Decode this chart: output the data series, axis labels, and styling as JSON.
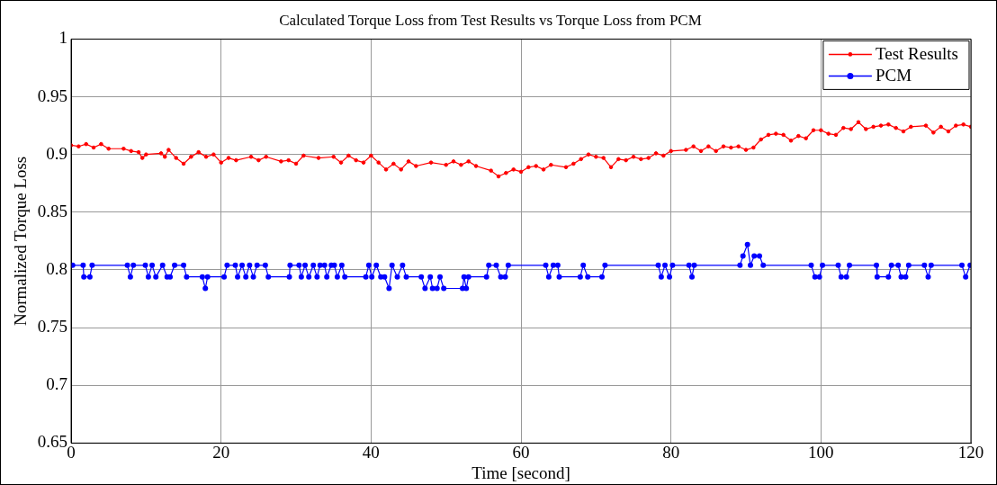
{
  "chart_data": {
    "type": "line",
    "title": "Calculated Torque Loss from Test Results vs Torque Loss from PCM",
    "xlabel": "Time [second]",
    "ylabel": "Normalized Torque Loss",
    "xlim": [
      0,
      120
    ],
    "xticks": [
      0,
      20,
      40,
      60,
      80,
      100,
      120
    ],
    "ylim": [
      0.65,
      1
    ],
    "yticks": [
      0.65,
      0.7,
      0.75,
      0.8,
      0.85,
      0.9,
      0.95,
      1
    ],
    "grid": true,
    "legend": "top right",
    "marker": "circle",
    "line_style": "solid",
    "series": [
      {
        "name": "Test Results",
        "color": "#ff0000",
        "x": [
          0,
          1,
          2,
          3,
          4,
          5,
          7,
          8,
          9,
          9.5,
          10,
          12,
          12.5,
          13,
          14,
          15,
          16,
          17,
          18,
          19,
          20,
          21,
          22,
          24,
          25,
          26,
          28,
          29,
          30,
          31,
          33,
          35,
          36,
          37,
          38,
          39,
          40,
          41,
          42,
          43,
          44,
          45,
          46,
          48,
          50,
          51,
          52,
          53,
          54,
          56,
          57,
          58,
          59,
          60,
          61,
          62,
          63,
          64,
          66,
          67,
          68,
          69,
          70,
          71,
          72,
          73,
          74,
          75,
          76,
          77,
          78,
          79,
          80,
          82,
          83,
          84,
          85,
          86,
          87,
          88,
          89,
          90,
          91,
          92,
          93,
          94,
          95,
          96,
          97,
          98,
          99,
          100,
          101,
          102,
          103,
          104,
          105,
          106,
          107,
          108,
          109,
          110,
          111,
          112,
          114,
          115,
          116,
          117,
          118,
          119,
          120
        ],
        "values": [
          0.908,
          0.907,
          0.909,
          0.906,
          0.909,
          0.905,
          0.905,
          0.903,
          0.902,
          0.897,
          0.9,
          0.901,
          0.898,
          0.904,
          0.897,
          0.892,
          0.898,
          0.902,
          0.898,
          0.9,
          0.893,
          0.897,
          0.895,
          0.898,
          0.895,
          0.898,
          0.894,
          0.895,
          0.892,
          0.899,
          0.897,
          0.898,
          0.893,
          0.899,
          0.895,
          0.893,
          0.899,
          0.893,
          0.887,
          0.892,
          0.887,
          0.894,
          0.89,
          0.893,
          0.891,
          0.894,
          0.891,
          0.894,
          0.89,
          0.886,
          0.881,
          0.884,
          0.887,
          0.885,
          0.889,
          0.89,
          0.887,
          0.891,
          0.889,
          0.892,
          0.896,
          0.9,
          0.898,
          0.897,
          0.889,
          0.896,
          0.895,
          0.898,
          0.896,
          0.897,
          0.901,
          0.899,
          0.903,
          0.904,
          0.907,
          0.903,
          0.907,
          0.903,
          0.907,
          0.906,
          0.907,
          0.904,
          0.906,
          0.913,
          0.917,
          0.918,
          0.917,
          0.912,
          0.916,
          0.914,
          0.921,
          0.921,
          0.918,
          0.917,
          0.923,
          0.922,
          0.928,
          0.922,
          0.924,
          0.925,
          0.926,
          0.923,
          0.92,
          0.924,
          0.925,
          0.919,
          0.924,
          0.92,
          0.925,
          0.926,
          0.924
        ]
      },
      {
        "name": "PCM",
        "color": "#0000ff",
        "x": [
          0.2,
          1.6,
          1.7,
          2.5,
          2.8,
          7.5,
          7.9,
          8.3,
          9.9,
          10.3,
          10.8,
          11.3,
          12.2,
          12.8,
          13.2,
          13.8,
          15,
          15.4,
          17.5,
          17.9,
          18.2,
          20.4,
          20.8,
          21.9,
          22.2,
          22.8,
          23.3,
          23.8,
          24.3,
          24.8,
          25.9,
          26.3,
          29.1,
          29.2,
          30.4,
          30.7,
          31.2,
          31.7,
          32.3,
          32.8,
          33.2,
          33.8,
          34.1,
          34.7,
          35.1,
          35.5,
          36.1,
          36.5,
          39.3,
          39.7,
          40.1,
          40.7,
          41.3,
          41.8,
          42.4,
          42.8,
          43.5,
          44.2,
          44.7,
          46.7,
          47.2,
          47.9,
          48.2,
          48.8,
          49.2,
          49.7,
          52.2,
          52.4,
          52.7,
          53,
          55.4,
          55.7,
          56.7,
          57.3,
          57.9,
          58.3,
          63.3,
          63.7,
          64.3,
          64.9,
          65.1,
          67.9,
          68.3,
          68.9,
          70.8,
          71.2,
          78.3,
          78.7,
          79.2,
          79.8,
          80.2,
          82.4,
          82.8,
          83.1,
          89.2,
          89.6,
          90.2,
          90.6,
          91.1,
          91.8,
          92.3,
          98.7,
          99.2,
          99.8,
          100.2,
          102.3,
          102.7,
          103.4,
          103.8,
          107.4,
          107.5,
          109,
          109.4,
          110.3,
          110.7,
          111.3,
          111.7,
          113.8,
          114.3,
          114.7,
          118.8,
          119.3,
          119.9
        ],
        "values": [
          0.804,
          0.804,
          0.794,
          0.794,
          0.804,
          0.804,
          0.794,
          0.804,
          0.804,
          0.794,
          0.804,
          0.794,
          0.804,
          0.794,
          0.794,
          0.804,
          0.804,
          0.794,
          0.794,
          0.784,
          0.794,
          0.794,
          0.804,
          0.804,
          0.794,
          0.804,
          0.794,
          0.804,
          0.794,
          0.804,
          0.804,
          0.794,
          0.794,
          0.804,
          0.804,
          0.794,
          0.804,
          0.794,
          0.804,
          0.794,
          0.804,
          0.804,
          0.794,
          0.804,
          0.804,
          0.794,
          0.804,
          0.794,
          0.794,
          0.804,
          0.794,
          0.804,
          0.794,
          0.794,
          0.784,
          0.804,
          0.794,
          0.804,
          0.794,
          0.794,
          0.784,
          0.794,
          0.784,
          0.784,
          0.794,
          0.784,
          0.784,
          0.794,
          0.784,
          0.794,
          0.794,
          0.804,
          0.804,
          0.794,
          0.794,
          0.804,
          0.804,
          0.794,
          0.804,
          0.804,
          0.794,
          0.794,
          0.804,
          0.794,
          0.794,
          0.804,
          0.804,
          0.794,
          0.804,
          0.794,
          0.804,
          0.804,
          0.794,
          0.804,
          0.804,
          0.812,
          0.822,
          0.804,
          0.812,
          0.812,
          0.804,
          0.804,
          0.794,
          0.794,
          0.804,
          0.804,
          0.794,
          0.794,
          0.804,
          0.804,
          0.794,
          0.794,
          0.804,
          0.804,
          0.794,
          0.794,
          0.804,
          0.804,
          0.794,
          0.804,
          0.804,
          0.794,
          0.804
        ]
      }
    ]
  }
}
